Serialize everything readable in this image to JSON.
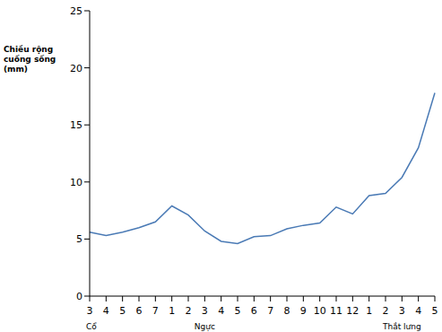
{
  "chart_data": {
    "type": "line",
    "y_label": "Chiều rộng cuống sống (mm)",
    "categories": [
      "3",
      "4",
      "5",
      "6",
      "7",
      "1",
      "2",
      "3",
      "4",
      "5",
      "6",
      "7",
      "8",
      "9",
      "10",
      "11",
      "12",
      "1",
      "2",
      "3",
      "4",
      "5"
    ],
    "values": [
      5.6,
      5.3,
      5.6,
      6.0,
      6.5,
      7.9,
      7.1,
      5.7,
      4.8,
      4.6,
      5.2,
      5.3,
      5.9,
      6.2,
      6.4,
      7.8,
      7.2,
      8.8,
      9.0,
      10.4,
      13.0,
      17.8
    ],
    "x_group_labels": [
      {
        "label": "Cổ",
        "index": 0
      },
      {
        "label": "Ngực",
        "index": 7
      },
      {
        "label": "Thắt lưng",
        "index": 19
      }
    ],
    "color": "#4a7ab5",
    "ylim": [
      0,
      25
    ],
    "yticks": [
      0,
      5,
      10,
      15,
      20,
      25
    ],
    "grid": false
  }
}
